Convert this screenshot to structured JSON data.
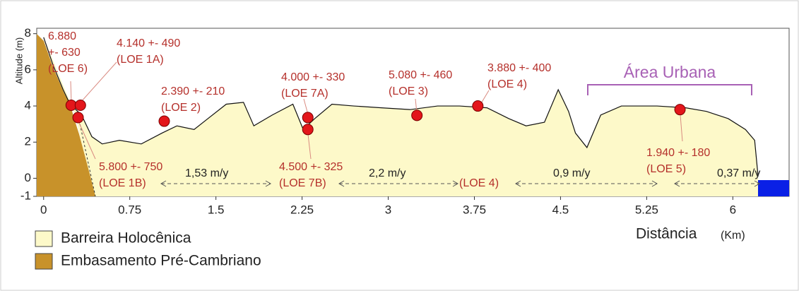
{
  "chart_data": {
    "type": "line",
    "ylabel": "Altitude (m)",
    "xlabel": "Distância",
    "xunit": "(Km)",
    "xlim": [
      -0.06,
      6.49
    ],
    "ylim": [
      -1,
      8.3
    ],
    "xticks": [
      0,
      0.75,
      1.5,
      2.25,
      3,
      3.75,
      4.5,
      5.25,
      6
    ],
    "yticks": [
      -1,
      0,
      2,
      4,
      6,
      8
    ],
    "series": [
      {
        "name": "Barreira Holocênica",
        "color": "#fdf9c9",
        "x": [
          0,
          0.08,
          0.17,
          0.23,
          0.33,
          0.42,
          0.51,
          0.66,
          0.85,
          1.03,
          1.16,
          1.31,
          1.43,
          1.59,
          1.74,
          1.83,
          1.99,
          2.17,
          2.26,
          2.36,
          2.51,
          2.7,
          2.94,
          3.19,
          3.43,
          3.62,
          3.86,
          4.05,
          4.2,
          4.36,
          4.48,
          4.57,
          4.63,
          4.73,
          4.85,
          5.03,
          5.34,
          5.59,
          5.77,
          5.96,
          6.11,
          6.19,
          6.22
        ],
        "values": [
          7.8,
          6.3,
          4.9,
          4.1,
          3.5,
          2.3,
          1.9,
          2.1,
          1.9,
          2.5,
          2.9,
          2.7,
          3.3,
          4.1,
          4.2,
          2.9,
          3.5,
          4.1,
          2.7,
          3.3,
          4.1,
          4.0,
          3.9,
          3.8,
          4.0,
          4.0,
          3.9,
          3.3,
          2.9,
          3.1,
          4.9,
          3.7,
          2.5,
          1.7,
          3.5,
          4.0,
          4.0,
          3.9,
          3.7,
          3.3,
          2.7,
          2.1,
          0.1
        ]
      },
      {
        "name": "Embasamento Pré-Cambriano",
        "color": "#c8922a"
      }
    ],
    "samples": {
      "color": "#e3161b",
      "x": [
        0.24,
        0.32,
        0.3,
        1.05,
        2.3,
        2.3,
        3.25,
        3.78,
        5.54
      ],
      "values": [
        4.04,
        4.04,
        3.36,
        3.16,
        3.36,
        2.7,
        3.48,
        4.0,
        3.8
      ]
    },
    "annotations": [
      [
        "6.880",
        "+- 630",
        "(LOE 6)"
      ],
      [
        "4.140 +- 490",
        "(LOE 1A)"
      ],
      [
        "2.390 +- 210",
        "(LOE 2)"
      ],
      [
        "4.000 +- 330",
        "(LOE 7A)"
      ],
      [
        "5.080 +- 460",
        "(LOE 3)"
      ],
      [
        "3.880 +- 400",
        "(LOE 4)"
      ],
      [
        "5.800 +- 750",
        "(LOE 1B)"
      ],
      [
        "4.500 +- 325",
        "(LOE 7B)"
      ],
      [
        "(LOE 4)"
      ],
      [
        "1.940 +- 180",
        "(LOE 5)"
      ]
    ],
    "rates": [
      "1,53 m/y",
      "2,2 m/y",
      "0,9 m/y",
      "0,37 m/y"
    ],
    "region_label": "Área Urbana"
  }
}
